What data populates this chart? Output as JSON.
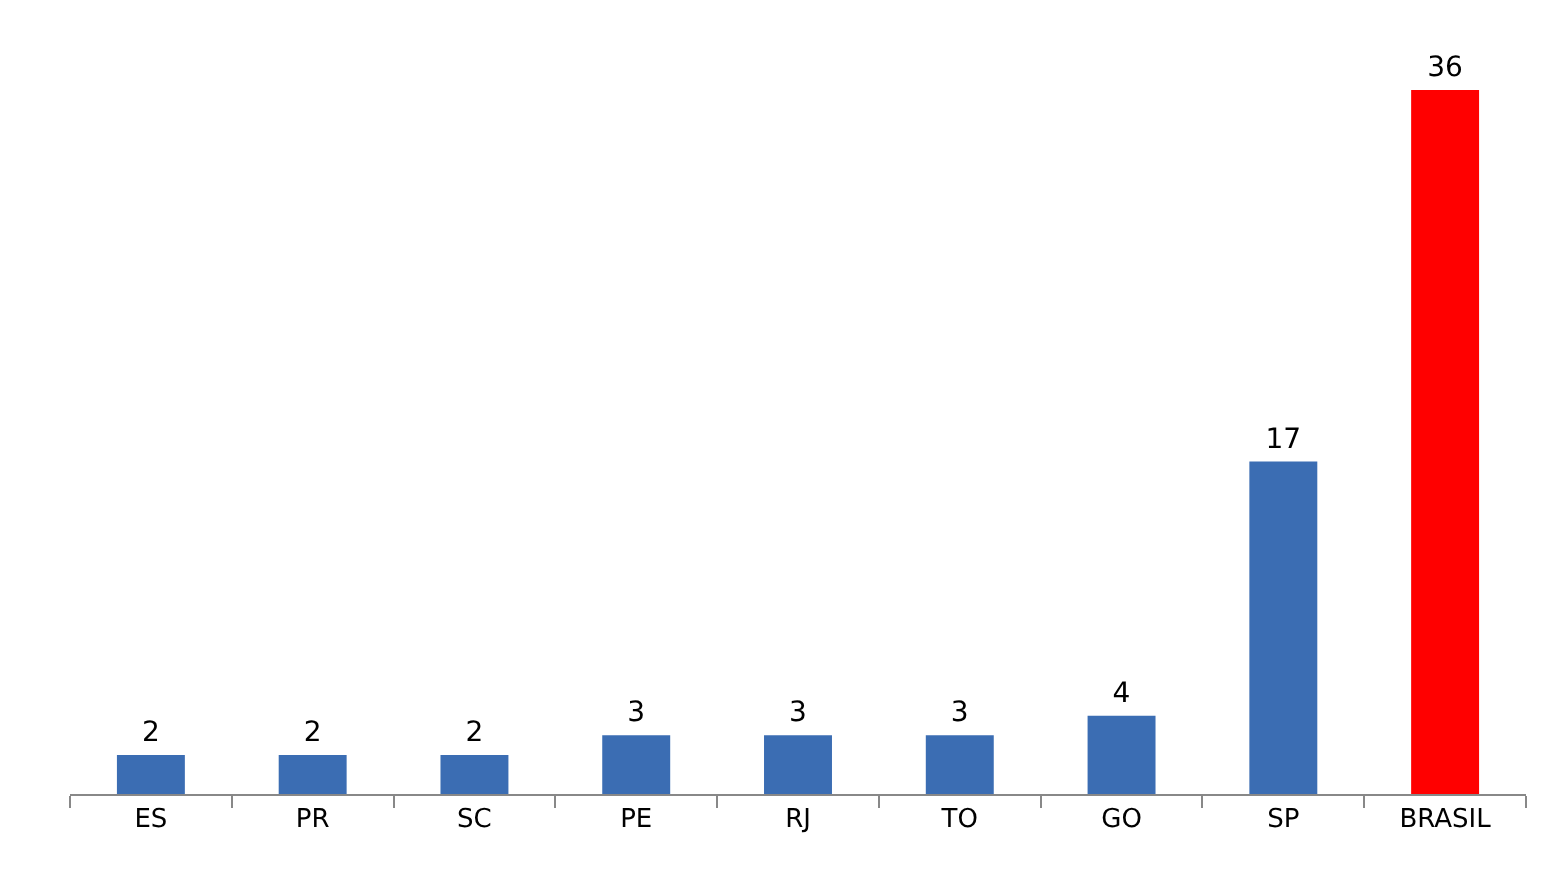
{
  "chart_data": {
    "type": "bar",
    "categories": [
      "ES",
      "PR",
      "SC",
      "PE",
      "RJ",
      "TO",
      "GO",
      "SP",
      "BRASIL"
    ],
    "values": [
      2,
      2,
      2,
      3,
      3,
      3,
      4,
      17,
      36
    ],
    "colors": [
      "#3b6db3",
      "#3b6db3",
      "#3b6db3",
      "#3b6db3",
      "#3b6db3",
      "#3b6db3",
      "#3b6db3",
      "#3b6db3",
      "#ff0000"
    ],
    "data_labels": true
  }
}
